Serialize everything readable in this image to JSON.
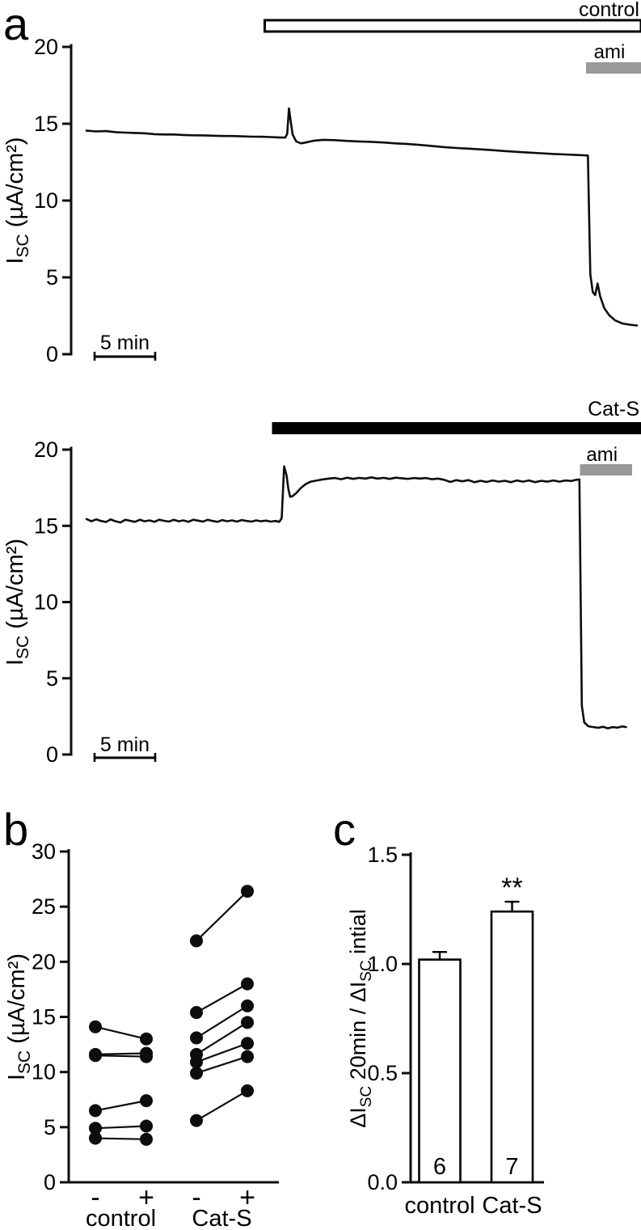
{
  "figure": {
    "panels": {
      "a": "a",
      "b": "b",
      "c": "c"
    }
  },
  "colors": {
    "trace": "#0d0d0d",
    "axis": "#0d0d0d",
    "ami_bar_fill": "#999999",
    "cats_bar_fill": "#000000",
    "control_bar_fill": "#ffffff",
    "dot_fill": "#0d0d0d"
  },
  "chart_data": [
    {
      "id": "a-top-control-trace",
      "type": "line",
      "panel": "a",
      "ylabel_parts": [
        {
          "t": "I"
        },
        {
          "t": "SC",
          "sub": true
        },
        {
          "t": " (µA/cm²)"
        }
      ],
      "ylim": [
        0,
        20
      ],
      "yticks": [
        {
          "v": 0,
          "label": "0"
        },
        {
          "v": 5,
          "label": "5"
        },
        {
          "v": 10,
          "label": "10"
        },
        {
          "v": 15,
          "label": "15"
        },
        {
          "v": 20,
          "label": "20"
        }
      ],
      "x_unit": "min",
      "treatment_bar": {
        "label": "control",
        "style": "open",
        "start_min": 14.7,
        "end_min": 46.0
      },
      "ami_bar": {
        "label": "ami",
        "start_min": 41.2,
        "end_min": 45.9
      },
      "scalebar": {
        "label": "5 min",
        "length_min": 5
      },
      "trace": [
        [
          0,
          14.55
        ],
        [
          0.8,
          14.5
        ],
        [
          1.6,
          14.52
        ],
        [
          2.4,
          14.45
        ],
        [
          3.2,
          14.42
        ],
        [
          4,
          14.4
        ],
        [
          4.8,
          14.38
        ],
        [
          5.6,
          14.32
        ],
        [
          6.4,
          14.3
        ],
        [
          7.2,
          14.3
        ],
        [
          8,
          14.27
        ],
        [
          8.8,
          14.25
        ],
        [
          9.6,
          14.24
        ],
        [
          10.4,
          14.22
        ],
        [
          11.2,
          14.2
        ],
        [
          12,
          14.2
        ],
        [
          12.8,
          14.18
        ],
        [
          13.6,
          14.16
        ],
        [
          14.4,
          14.15
        ],
        [
          15.2,
          14.13
        ],
        [
          16,
          14.1
        ],
        [
          16.4,
          14.1
        ],
        [
          16.55,
          14.35
        ],
        [
          16.7,
          16.0
        ],
        [
          16.85,
          15.1
        ],
        [
          17,
          14.3
        ],
        [
          17.3,
          13.85
        ],
        [
          17.7,
          13.72
        ],
        [
          18.2,
          13.8
        ],
        [
          18.8,
          13.9
        ],
        [
          19.5,
          13.95
        ],
        [
          20.5,
          13.93
        ],
        [
          21.5,
          13.88
        ],
        [
          22.5,
          13.85
        ],
        [
          23.5,
          13.82
        ],
        [
          24.5,
          13.78
        ],
        [
          25.5,
          13.72
        ],
        [
          26.5,
          13.68
        ],
        [
          27.5,
          13.62
        ],
        [
          28.5,
          13.55
        ],
        [
          29.5,
          13.48
        ],
        [
          30.5,
          13.42
        ],
        [
          31.5,
          13.38
        ],
        [
          32.5,
          13.33
        ],
        [
          33.5,
          13.28
        ],
        [
          34.5,
          13.22
        ],
        [
          35.5,
          13.17
        ],
        [
          36.5,
          13.12
        ],
        [
          37.5,
          13.08
        ],
        [
          38.5,
          13.03
        ],
        [
          39.5,
          13.0
        ],
        [
          40.3,
          12.97
        ],
        [
          41,
          12.95
        ],
        [
          41.35,
          12.93
        ],
        [
          41.55,
          5.2
        ],
        [
          41.75,
          4.05
        ],
        [
          41.95,
          3.85
        ],
        [
          42.15,
          4.6
        ],
        [
          42.35,
          3.8
        ],
        [
          42.7,
          3.0
        ],
        [
          43.1,
          2.55
        ],
        [
          43.6,
          2.2
        ],
        [
          44.2,
          2.0
        ],
        [
          44.8,
          1.92
        ],
        [
          45.4,
          1.87
        ]
      ]
    },
    {
      "id": "a-bottom-cats-trace",
      "type": "line",
      "panel": "a",
      "ylabel_parts": [
        {
          "t": "I"
        },
        {
          "t": "SC",
          "sub": true
        },
        {
          "t": " (µA/cm²)"
        }
      ],
      "ylim": [
        0,
        20
      ],
      "yticks": [
        {
          "v": 0,
          "label": "0"
        },
        {
          "v": 5,
          "label": "5"
        },
        {
          "v": 10,
          "label": "10"
        },
        {
          "v": 15,
          "label": "15"
        },
        {
          "v": 20,
          "label": "20"
        }
      ],
      "x_unit": "min",
      "treatment_bar": {
        "label": "Cat-S",
        "style": "solid",
        "start_min": 15.3,
        "end_min": 46.0
      },
      "ami_bar": {
        "label": "ami",
        "start_min": 40.7,
        "end_min": 45.0
      },
      "scalebar": {
        "label": "5 min",
        "length_min": 5
      },
      "trace": [
        [
          0,
          15.45
        ],
        [
          0.4,
          15.3
        ],
        [
          0.8,
          15.42
        ],
        [
          1.2,
          15.32
        ],
        [
          1.6,
          15.25
        ],
        [
          2,
          15.42
        ],
        [
          2.4,
          15.3
        ],
        [
          2.8,
          15.22
        ],
        [
          3.2,
          15.4
        ],
        [
          3.6,
          15.33
        ],
        [
          4,
          15.26
        ],
        [
          4.4,
          15.4
        ],
        [
          4.8,
          15.3
        ],
        [
          5.2,
          15.36
        ],
        [
          5.6,
          15.26
        ],
        [
          6,
          15.4
        ],
        [
          6.4,
          15.33
        ],
        [
          6.8,
          15.28
        ],
        [
          7.2,
          15.4
        ],
        [
          7.6,
          15.3
        ],
        [
          8,
          15.36
        ],
        [
          8.4,
          15.26
        ],
        [
          8.8,
          15.4
        ],
        [
          9.2,
          15.34
        ],
        [
          9.6,
          15.28
        ],
        [
          10,
          15.4
        ],
        [
          10.4,
          15.32
        ],
        [
          10.8,
          15.26
        ],
        [
          11.2,
          15.38
        ],
        [
          11.6,
          15.3
        ],
        [
          12,
          15.36
        ],
        [
          12.4,
          15.28
        ],
        [
          12.8,
          15.38
        ],
        [
          13.2,
          15.32
        ],
        [
          13.6,
          15.28
        ],
        [
          14,
          15.36
        ],
        [
          14.4,
          15.3
        ],
        [
          14.8,
          15.34
        ],
        [
          15.2,
          15.28
        ],
        [
          15.6,
          15.32
        ],
        [
          15.9,
          15.26
        ],
        [
          16.1,
          15.5
        ],
        [
          16.3,
          18.9
        ],
        [
          16.5,
          18.3
        ],
        [
          16.65,
          17.4
        ],
        [
          16.8,
          16.9
        ],
        [
          17,
          16.95
        ],
        [
          17.3,
          17.15
        ],
        [
          17.7,
          17.5
        ],
        [
          18.1,
          17.75
        ],
        [
          18.5,
          17.9
        ],
        [
          19,
          17.98
        ],
        [
          19.5,
          18.05
        ],
        [
          20,
          18.1
        ],
        [
          20.5,
          18.14
        ],
        [
          21,
          18.06
        ],
        [
          21.5,
          18.16
        ],
        [
          22,
          18.08
        ],
        [
          22.5,
          18.15
        ],
        [
          23,
          18.1
        ],
        [
          23.5,
          18.18
        ],
        [
          24,
          18.1
        ],
        [
          24.5,
          18.15
        ],
        [
          25,
          18.08
        ],
        [
          25.5,
          18.16
        ],
        [
          26,
          18.12
        ],
        [
          26.5,
          18.08
        ],
        [
          27,
          18.14
        ],
        [
          27.5,
          18.1
        ],
        [
          28,
          18.14
        ],
        [
          28.5,
          18.06
        ],
        [
          29,
          18.1
        ],
        [
          29.5,
          18.02
        ],
        [
          30,
          17.88
        ],
        [
          30.5,
          18.0
        ],
        [
          31,
          17.92
        ],
        [
          31.5,
          18.0
        ],
        [
          32,
          17.86
        ],
        [
          32.5,
          17.96
        ],
        [
          33,
          17.88
        ],
        [
          33.5,
          17.98
        ],
        [
          34,
          17.9
        ],
        [
          34.5,
          17.96
        ],
        [
          35,
          17.86
        ],
        [
          35.5,
          17.98
        ],
        [
          36,
          17.9
        ],
        [
          36.5,
          17.98
        ],
        [
          37,
          17.87
        ],
        [
          37.5,
          17.95
        ],
        [
          38,
          17.9
        ],
        [
          38.5,
          17.98
        ],
        [
          39,
          17.9
        ],
        [
          39.5,
          17.98
        ],
        [
          40,
          17.94
        ],
        [
          40.4,
          18.02
        ],
        [
          40.65,
          18.04
        ],
        [
          40.85,
          3.2
        ],
        [
          41.05,
          2.1
        ],
        [
          41.4,
          1.85
        ],
        [
          41.8,
          1.8
        ],
        [
          42.2,
          1.75
        ],
        [
          42.6,
          1.82
        ],
        [
          43,
          1.72
        ],
        [
          43.4,
          1.8
        ],
        [
          43.8,
          1.76
        ],
        [
          44.2,
          1.84
        ],
        [
          44.5,
          1.8
        ]
      ]
    },
    {
      "id": "b-paired-scatter",
      "type": "scatter",
      "panel": "b",
      "ylabel_parts": [
        {
          "t": "I"
        },
        {
          "t": "SC",
          "sub": true
        },
        {
          "t": " (µA/cm²)"
        }
      ],
      "ylim": [
        0,
        30
      ],
      "yticks": [
        {
          "v": 0,
          "label": "0"
        },
        {
          "v": 5,
          "label": "5"
        },
        {
          "v": 10,
          "label": "10"
        },
        {
          "v": 15,
          "label": "15"
        },
        {
          "v": 20,
          "label": "20"
        },
        {
          "v": 25,
          "label": "25"
        },
        {
          "v": 30,
          "label": "30"
        }
      ],
      "groups": [
        {
          "label": "control",
          "tick_labels": [
            "-",
            "+"
          ],
          "pairs": [
            [
              14.1,
              13.0
            ],
            [
              11.6,
              11.7
            ],
            [
              11.5,
              11.4
            ],
            [
              6.5,
              7.4
            ],
            [
              4.9,
              5.1
            ],
            [
              4.0,
              3.9
            ]
          ]
        },
        {
          "label": "Cat-S",
          "tick_labels": [
            "-",
            "+"
          ],
          "pairs": [
            [
              21.9,
              26.4
            ],
            [
              15.4,
              18.0
            ],
            [
              13.1,
              16.0
            ],
            [
              11.6,
              14.5
            ],
            [
              10.9,
              12.6
            ],
            [
              9.9,
              11.4
            ],
            [
              5.6,
              8.3
            ]
          ]
        }
      ]
    },
    {
      "id": "c-summary-bars",
      "type": "bar",
      "panel": "c",
      "ylabel_parts": [
        {
          "t": "ΔI"
        },
        {
          "t": "SC",
          "sub": true
        },
        {
          "t": " 20min / ΔI"
        },
        {
          "t": "SC",
          "sub": true
        },
        {
          "t": " intial"
        }
      ],
      "ylim": [
        0,
        1.5
      ],
      "yticks": [
        {
          "v": 0,
          "label": "0.0"
        },
        {
          "v": 0.5,
          "label": "0.5"
        },
        {
          "v": 1,
          "label": "1.0"
        },
        {
          "v": 1.5,
          "label": "1.5"
        }
      ],
      "categories": [
        "control",
        "Cat-S"
      ],
      "values": [
        1.02,
        1.24
      ],
      "errors": [
        0.035,
        0.045
      ],
      "n_labels": [
        "6",
        "7"
      ],
      "significance": [
        "",
        "**"
      ]
    }
  ]
}
